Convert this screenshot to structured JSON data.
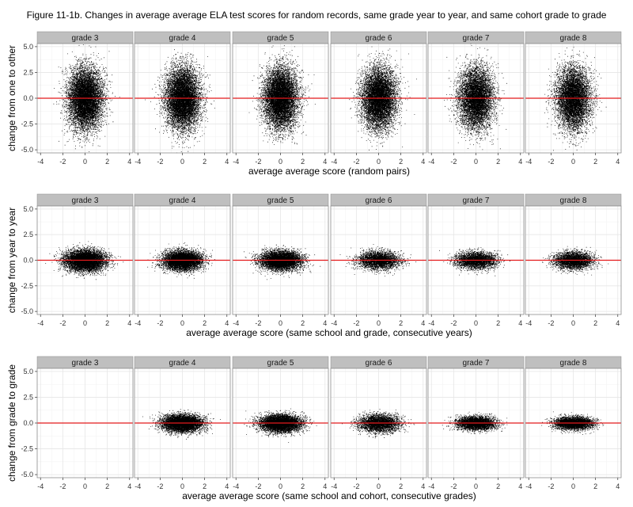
{
  "title": "Figure 11-1b. Changes in average average ELA test scores for random records, same grade year to year, and same cohort grade to grade",
  "colors": {
    "points": "#000000",
    "reference_line": "#e41a1c",
    "strip_bg": "#bfbfbf",
    "panel_border": "#8c8c8c",
    "grid_major": "#e6e6e6",
    "grid_minor": "#f3f3f3"
  },
  "chart_data": [
    {
      "type": "scatter",
      "row": "random",
      "xlabel": "average average score (random pairs)",
      "ylabel": "change from one to other",
      "xlim": [
        -4.3,
        4.3
      ],
      "ylim": [
        -5.3,
        5.3
      ],
      "xticks": [
        -4,
        -2,
        0,
        2,
        4
      ],
      "yticks": [
        -5.0,
        -2.5,
        0.0,
        2.5,
        5.0
      ],
      "ytick_labels": [
        "-5.0",
        "-2.5",
        "0.0",
        "2.5",
        "5.0"
      ],
      "reference_line_y": 0,
      "grid": true,
      "series": [
        {
          "facet": "grade 3",
          "n_points": 9000,
          "x_center": 0.0,
          "x_sd": 0.75,
          "y_center": 0.0,
          "y_sd": 1.45
        },
        {
          "facet": "grade 4",
          "n_points": 9000,
          "x_center": 0.0,
          "x_sd": 0.75,
          "y_center": 0.0,
          "y_sd": 1.45
        },
        {
          "facet": "grade 5",
          "n_points": 9000,
          "x_center": 0.0,
          "x_sd": 0.75,
          "y_center": 0.0,
          "y_sd": 1.45
        },
        {
          "facet": "grade 6",
          "n_points": 8500,
          "x_center": 0.0,
          "x_sd": 0.75,
          "y_center": 0.0,
          "y_sd": 1.45
        },
        {
          "facet": "grade 7",
          "n_points": 7500,
          "x_center": 0.0,
          "x_sd": 0.75,
          "y_center": 0.0,
          "y_sd": 1.45
        },
        {
          "facet": "grade 8",
          "n_points": 7500,
          "x_center": 0.0,
          "x_sd": 0.75,
          "y_center": 0.0,
          "y_sd": 1.45
        }
      ]
    },
    {
      "type": "scatter",
      "row": "same school and grade",
      "xlabel": "average average score (same school and grade, consecutive years)",
      "ylabel": "change from year to year",
      "xlim": [
        -4.3,
        4.3
      ],
      "ylim": [
        -5.3,
        5.3
      ],
      "xticks": [
        -4,
        -2,
        0,
        2,
        4
      ],
      "yticks": [
        -5.0,
        -2.5,
        0.0,
        2.5,
        5.0
      ],
      "ytick_labels": [
        "-5.0",
        "-2.5",
        "0.0",
        "2.5",
        "5.0"
      ],
      "reference_line_y": 0,
      "grid": true,
      "series": [
        {
          "facet": "grade 3",
          "n_points": 7000,
          "x_center": 0.0,
          "x_sd": 0.9,
          "y_center": 0.0,
          "y_sd": 0.5
        },
        {
          "facet": "grade 4",
          "n_points": 6500,
          "x_center": 0.0,
          "x_sd": 0.85,
          "y_center": 0.0,
          "y_sd": 0.45
        },
        {
          "facet": "grade 5",
          "n_points": 6500,
          "x_center": 0.0,
          "x_sd": 0.9,
          "y_center": 0.0,
          "y_sd": 0.45
        },
        {
          "facet": "grade 6",
          "n_points": 3500,
          "x_center": 0.0,
          "x_sd": 0.9,
          "y_center": 0.0,
          "y_sd": 0.42
        },
        {
          "facet": "grade 7",
          "n_points": 3500,
          "x_center": 0.0,
          "x_sd": 0.9,
          "y_center": 0.0,
          "y_sd": 0.4
        },
        {
          "facet": "grade 8",
          "n_points": 3500,
          "x_center": 0.0,
          "x_sd": 0.85,
          "y_center": 0.0,
          "y_sd": 0.4
        }
      ]
    },
    {
      "type": "scatter",
      "row": "same school and cohort",
      "xlabel": "average average score (same school and cohort, consecutive grades)",
      "ylabel": "change from grade to grade",
      "xlim": [
        -4.3,
        4.3
      ],
      "ylim": [
        -5.3,
        5.3
      ],
      "xticks": [
        -4,
        -2,
        0,
        2,
        4
      ],
      "yticks": [
        -5.0,
        -2.5,
        0.0,
        2.5,
        5.0
      ],
      "ytick_labels": [
        "-5.0",
        "-2.5",
        "0.0",
        "2.5",
        "5.0"
      ],
      "reference_line_y": 0,
      "grid": true,
      "series": [
        {
          "facet": "grade 3",
          "n_points": 0,
          "x_center": 0.0,
          "x_sd": 0.9,
          "y_center": 0.0,
          "y_sd": 0.4
        },
        {
          "facet": "grade 4",
          "n_points": 6500,
          "x_center": 0.0,
          "x_sd": 0.85,
          "y_center": 0.0,
          "y_sd": 0.4
        },
        {
          "facet": "grade 5",
          "n_points": 6500,
          "x_center": 0.0,
          "x_sd": 0.9,
          "y_center": 0.0,
          "y_sd": 0.4
        },
        {
          "facet": "grade 6",
          "n_points": 3500,
          "x_center": 0.0,
          "x_sd": 0.9,
          "y_center": 0.0,
          "y_sd": 0.42
        },
        {
          "facet": "grade 7",
          "n_points": 4000,
          "x_center": 0.0,
          "x_sd": 0.85,
          "y_center": 0.0,
          "y_sd": 0.32
        },
        {
          "facet": "grade 8",
          "n_points": 4000,
          "x_center": 0.0,
          "x_sd": 0.85,
          "y_center": 0.0,
          "y_sd": 0.3
        }
      ]
    }
  ]
}
